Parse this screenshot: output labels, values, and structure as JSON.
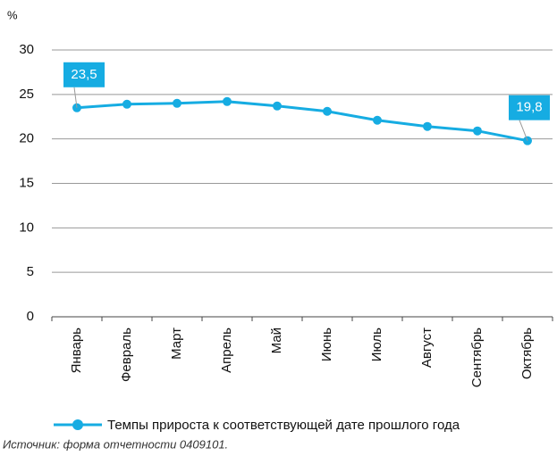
{
  "chart_data": {
    "type": "line",
    "y_label": "%",
    "categories": [
      "Январь",
      "Февраль",
      "Март",
      "Апрель",
      "Май",
      "Июнь",
      "Июль",
      "Август",
      "Сентябрь",
      "Октябрь"
    ],
    "series": [
      {
        "name": "Темпы прироста к соответствующей дате прошлого года",
        "color": "#16ace2",
        "values": [
          23.5,
          23.9,
          24.0,
          24.2,
          23.7,
          23.1,
          22.1,
          21.4,
          20.9,
          19.8
        ],
        "value_labels": [
          "23,5",
          null,
          null,
          null,
          null,
          null,
          null,
          null,
          null,
          "19,8"
        ]
      }
    ],
    "ylim": [
      0,
      30
    ],
    "yticks": [
      0,
      5,
      10,
      15,
      20,
      25,
      30
    ],
    "grid": true,
    "source": "Источник: форма отчетности 0409101."
  }
}
